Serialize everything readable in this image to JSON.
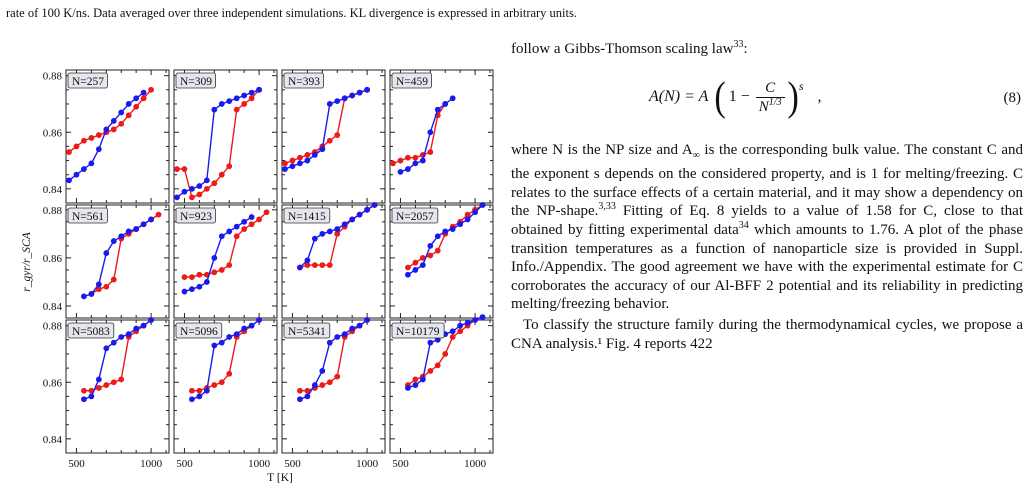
{
  "caption_fragment": "rate of 100 K/ns. Data averaged over three independent simulations. KL divergence is expressed in arbitrary units.",
  "figure": {
    "ylabel": "r_gyr/r_SCA",
    "xlabel": "T [K]",
    "yticks": [
      "0.84",
      "0.86",
      "0.88"
    ],
    "xticks": [
      "500",
      "1000"
    ],
    "panel_labels": [
      "N=257",
      "N=309",
      "N=393",
      "N=459",
      "N=561",
      "N=923",
      "N=1415",
      "N=2057",
      "N=5083",
      "N=5096",
      "N=5341",
      "N=10179"
    ],
    "colors": {
      "series_a": "#1a1aee",
      "series_b": "#ee1a1a"
    }
  },
  "chart_data": {
    "type": "line",
    "ylabel": "r_gyr/r_SCA",
    "xlabel": "T [K]",
    "xlim": [
      430,
      1120
    ],
    "ylim": [
      0.835,
      0.882
    ],
    "grid": false,
    "panels": [
      {
        "label": "N=257",
        "series": [
          {
            "x": [
              450,
              500,
              550,
              600,
              650,
              700,
              750,
              800,
              850,
              900,
              950
            ],
            "y": [
              0.843,
              0.845,
              0.847,
              0.849,
              0.854,
              0.861,
              0.864,
              0.867,
              0.87,
              0.872,
              0.874
            ]
          },
          {
            "x": [
              450,
              500,
              550,
              600,
              650,
              700,
              750,
              800,
              850,
              900,
              950,
              1000
            ],
            "y": [
              0.853,
              0.855,
              0.857,
              0.858,
              0.859,
              0.86,
              0.861,
              0.863,
              0.866,
              0.869,
              0.872,
              0.875
            ]
          }
        ]
      },
      {
        "label": "N=309",
        "series": [
          {
            "x": [
              450,
              500,
              550,
              600,
              650,
              700,
              750,
              800,
              850,
              900,
              950,
              1000
            ],
            "y": [
              0.837,
              0.839,
              0.84,
              0.841,
              0.843,
              0.868,
              0.87,
              0.871,
              0.872,
              0.873,
              0.874,
              0.875
            ]
          },
          {
            "x": [
              450,
              500,
              550,
              600,
              650,
              700,
              750,
              800,
              850,
              900,
              950,
              1000
            ],
            "y": [
              0.847,
              0.847,
              0.837,
              0.838,
              0.84,
              0.842,
              0.845,
              0.848,
              0.868,
              0.87,
              0.872,
              0.875
            ]
          }
        ]
      },
      {
        "label": "N=393",
        "series": [
          {
            "x": [
              450,
              500,
              550,
              600,
              650,
              700,
              750,
              800,
              850,
              900,
              950,
              1000
            ],
            "y": [
              0.847,
              0.848,
              0.849,
              0.85,
              0.852,
              0.854,
              0.87,
              0.871,
              0.872,
              0.873,
              0.874,
              0.875
            ]
          },
          {
            "x": [
              450,
              500,
              550,
              600,
              650,
              700,
              750,
              800,
              850,
              900,
              950,
              1000
            ],
            "y": [
              0.849,
              0.85,
              0.851,
              0.852,
              0.853,
              0.855,
              0.857,
              0.859,
              0.872,
              0.873,
              0.874,
              0.875
            ]
          }
        ]
      },
      {
        "label": "N=459",
        "series": [
          {
            "x": [
              500,
              550,
              600,
              650,
              700,
              750,
              800,
              850
            ],
            "y": [
              0.846,
              0.847,
              0.849,
              0.85,
              0.86,
              0.868,
              0.87,
              0.872
            ]
          },
          {
            "x": [
              450,
              500,
              550,
              600,
              650,
              700,
              750,
              800
            ],
            "y": [
              0.849,
              0.85,
              0.851,
              0.851,
              0.852,
              0.853,
              0.866,
              0.87
            ]
          }
        ]
      },
      {
        "label": "N=561",
        "series": [
          {
            "x": [
              550,
              600,
              650,
              700,
              750,
              800,
              850,
              900,
              950,
              1000
            ],
            "y": [
              0.844,
              0.845,
              0.849,
              0.862,
              0.867,
              0.869,
              0.871,
              0.872,
              0.874,
              0.876
            ]
          },
          {
            "x": [
              600,
              650,
              700,
              750,
              800,
              850,
              900,
              950,
              1000,
              1050
            ],
            "y": [
              0.845,
              0.847,
              0.848,
              0.851,
              0.868,
              0.87,
              0.872,
              0.874,
              0.876,
              0.878
            ]
          }
        ]
      },
      {
        "label": "N=923",
        "series": [
          {
            "x": [
              500,
              550,
              600,
              650,
              700,
              750,
              800,
              850,
              900,
              950
            ],
            "y": [
              0.846,
              0.847,
              0.848,
              0.85,
              0.86,
              0.869,
              0.871,
              0.873,
              0.875,
              0.877
            ]
          },
          {
            "x": [
              500,
              550,
              600,
              650,
              700,
              750,
              800,
              850,
              900,
              950,
              1000,
              1050
            ],
            "y": [
              0.852,
              0.852,
              0.853,
              0.853,
              0.854,
              0.855,
              0.857,
              0.869,
              0.872,
              0.874,
              0.876,
              0.879
            ]
          }
        ]
      },
      {
        "label": "N=1415",
        "series": [
          {
            "x": [
              550,
              600,
              650,
              700,
              750,
              800,
              850,
              900,
              950,
              1000,
              1050
            ],
            "y": [
              0.856,
              0.859,
              0.868,
              0.87,
              0.871,
              0.872,
              0.874,
              0.876,
              0.878,
              0.88,
              0.882
            ]
          },
          {
            "x": [
              550,
              600,
              650,
              700,
              750,
              800,
              850,
              900,
              950,
              1000,
              1050
            ],
            "y": [
              0.856,
              0.857,
              0.857,
              0.857,
              0.857,
              0.87,
              0.873,
              0.876,
              0.878,
              0.88,
              0.882
            ]
          }
        ]
      },
      {
        "label": "N=2057",
        "series": [
          {
            "x": [
              550,
              600,
              650,
              700,
              750,
              800,
              850,
              900,
              950,
              1000,
              1050
            ],
            "y": [
              0.853,
              0.855,
              0.857,
              0.865,
              0.869,
              0.871,
              0.872,
              0.874,
              0.876,
              0.879,
              0.882
            ]
          },
          {
            "x": [
              550,
              600,
              650,
              700,
              750,
              800,
              850,
              900,
              950,
              1000,
              1050
            ],
            "y": [
              0.856,
              0.858,
              0.86,
              0.861,
              0.863,
              0.87,
              0.873,
              0.875,
              0.878,
              0.88,
              0.882
            ]
          }
        ]
      },
      {
        "label": "N=5083",
        "series": [
          {
            "x": [
              550,
              600,
              650,
              700,
              750,
              800,
              850,
              900,
              950,
              1000
            ],
            "y": [
              0.854,
              0.855,
              0.861,
              0.872,
              0.874,
              0.876,
              0.877,
              0.879,
              0.88,
              0.882
            ]
          },
          {
            "x": [
              550,
              600,
              650,
              700,
              750,
              800,
              850,
              900,
              950,
              1000
            ],
            "y": [
              0.857,
              0.857,
              0.858,
              0.859,
              0.86,
              0.861,
              0.876,
              0.878,
              0.88,
              0.882
            ]
          }
        ]
      },
      {
        "label": "N=5096",
        "series": [
          {
            "x": [
              550,
              600,
              650,
              700,
              750,
              800,
              850,
              900,
              950,
              1000
            ],
            "y": [
              0.854,
              0.855,
              0.857,
              0.873,
              0.874,
              0.876,
              0.877,
              0.879,
              0.88,
              0.882
            ]
          },
          {
            "x": [
              550,
              600,
              650,
              700,
              750,
              800,
              850,
              900,
              950,
              1000
            ],
            "y": [
              0.857,
              0.857,
              0.858,
              0.859,
              0.86,
              0.863,
              0.876,
              0.878,
              0.88,
              0.882
            ]
          }
        ]
      },
      {
        "label": "N=5341",
        "series": [
          {
            "x": [
              550,
              600,
              650,
              700,
              750,
              800,
              850,
              900,
              950,
              1000
            ],
            "y": [
              0.854,
              0.855,
              0.859,
              0.864,
              0.874,
              0.876,
              0.877,
              0.879,
              0.88,
              0.882
            ]
          },
          {
            "x": [
              550,
              600,
              650,
              700,
              750,
              800,
              850,
              900,
              950,
              1000
            ],
            "y": [
              0.857,
              0.857,
              0.858,
              0.859,
              0.86,
              0.862,
              0.876,
              0.878,
              0.88,
              0.882
            ]
          }
        ]
      },
      {
        "label": "N=10179",
        "series": [
          {
            "x": [
              550,
              600,
              650,
              700,
              750,
              800,
              850,
              900,
              950,
              1000,
              1050
            ],
            "y": [
              0.858,
              0.859,
              0.861,
              0.874,
              0.875,
              0.877,
              0.878,
              0.88,
              0.881,
              0.882,
              0.883
            ]
          },
          {
            "x": [
              550,
              600,
              650,
              700,
              750,
              800,
              850,
              900,
              950,
              1000,
              1050
            ],
            "y": [
              0.859,
              0.861,
              0.862,
              0.864,
              0.866,
              0.87,
              0.876,
              0.878,
              0.88,
              0.882,
              0.883
            ]
          }
        ]
      }
    ]
  },
  "text": {
    "intro_a": "follow a Gibbs-Thomson scaling law",
    "intro_ref": "33",
    "intro_b": ":",
    "eq_lhs": "A(N) = A",
    "eq_one_minus": "1 −",
    "eq_num": "C",
    "eq_den": "N",
    "eq_den_exp": "1/3",
    "eq_exp": "s",
    "eq_tail": ",",
    "eq_number": "(8)",
    "p1_a": "where N is the NP size and A",
    "p1_inf": "∞",
    "p1_b": " is the corresponding bulk value. The constant C and the exponent s depends on the considered property, and is 1 for melting/freezing. C relates to the surface effects of a certain material, and it may show a dependency on the NP-shape.",
    "p1_ref1": "3,33",
    "p1_c": " Fitting of Eq. 8 yields to a value of 1.58 for C, close to that obtained by fitting experimental data",
    "p1_ref2": "34",
    "p1_d": " which amounts to 1.76. A plot of the phase transition temperatures as a function of nanoparticle size is provided in Suppl. Info./Appendix. The good agreement we have with the experimental estimate for C corroborates the accuracy of our Al-BFF 2 potential and its reliability in predicting melting/freezing behavior.",
    "p2": "To classify the structure family during the thermodynamical cycles, we propose a CNA analysis.¹ Fig. 4 reports 422"
  }
}
